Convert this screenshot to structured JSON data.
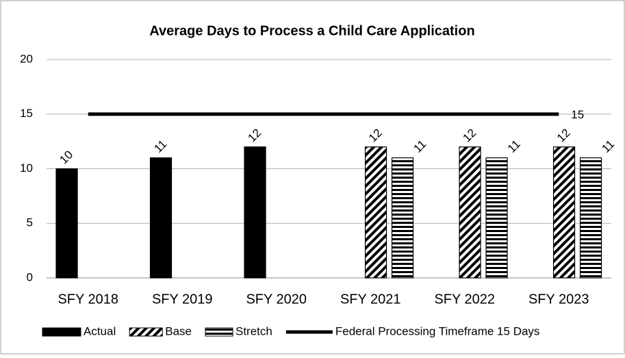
{
  "chart_data": {
    "type": "bar",
    "title": "Average Days to Process a Child Care Application",
    "categories": [
      "SFY 2018",
      "SFY 2019",
      "SFY 2020",
      "SFY 2021",
      "SFY 2022",
      "SFY 2023"
    ],
    "series": [
      {
        "name": "Actual",
        "color": "#000000",
        "pattern": "solid",
        "values": [
          10,
          11,
          12,
          null,
          null,
          null
        ]
      },
      {
        "name": "Base",
        "color": "#000000",
        "pattern": "diagonal",
        "values": [
          null,
          null,
          null,
          12,
          12,
          12
        ]
      },
      {
        "name": "Stretch",
        "color": "#000000",
        "pattern": "horizontal",
        "values": [
          null,
          null,
          null,
          11,
          11,
          11
        ]
      },
      {
        "name": "Federal Processing Timeframe 15 Days",
        "color": "#000000",
        "type": "line",
        "values": [
          15,
          15,
          15,
          15,
          15,
          15
        ],
        "label_last": true
      }
    ],
    "ylim": [
      0,
      20
    ],
    "yticks": [
      0,
      5,
      10,
      15,
      20
    ],
    "grid": true,
    "legend": "bottom"
  }
}
